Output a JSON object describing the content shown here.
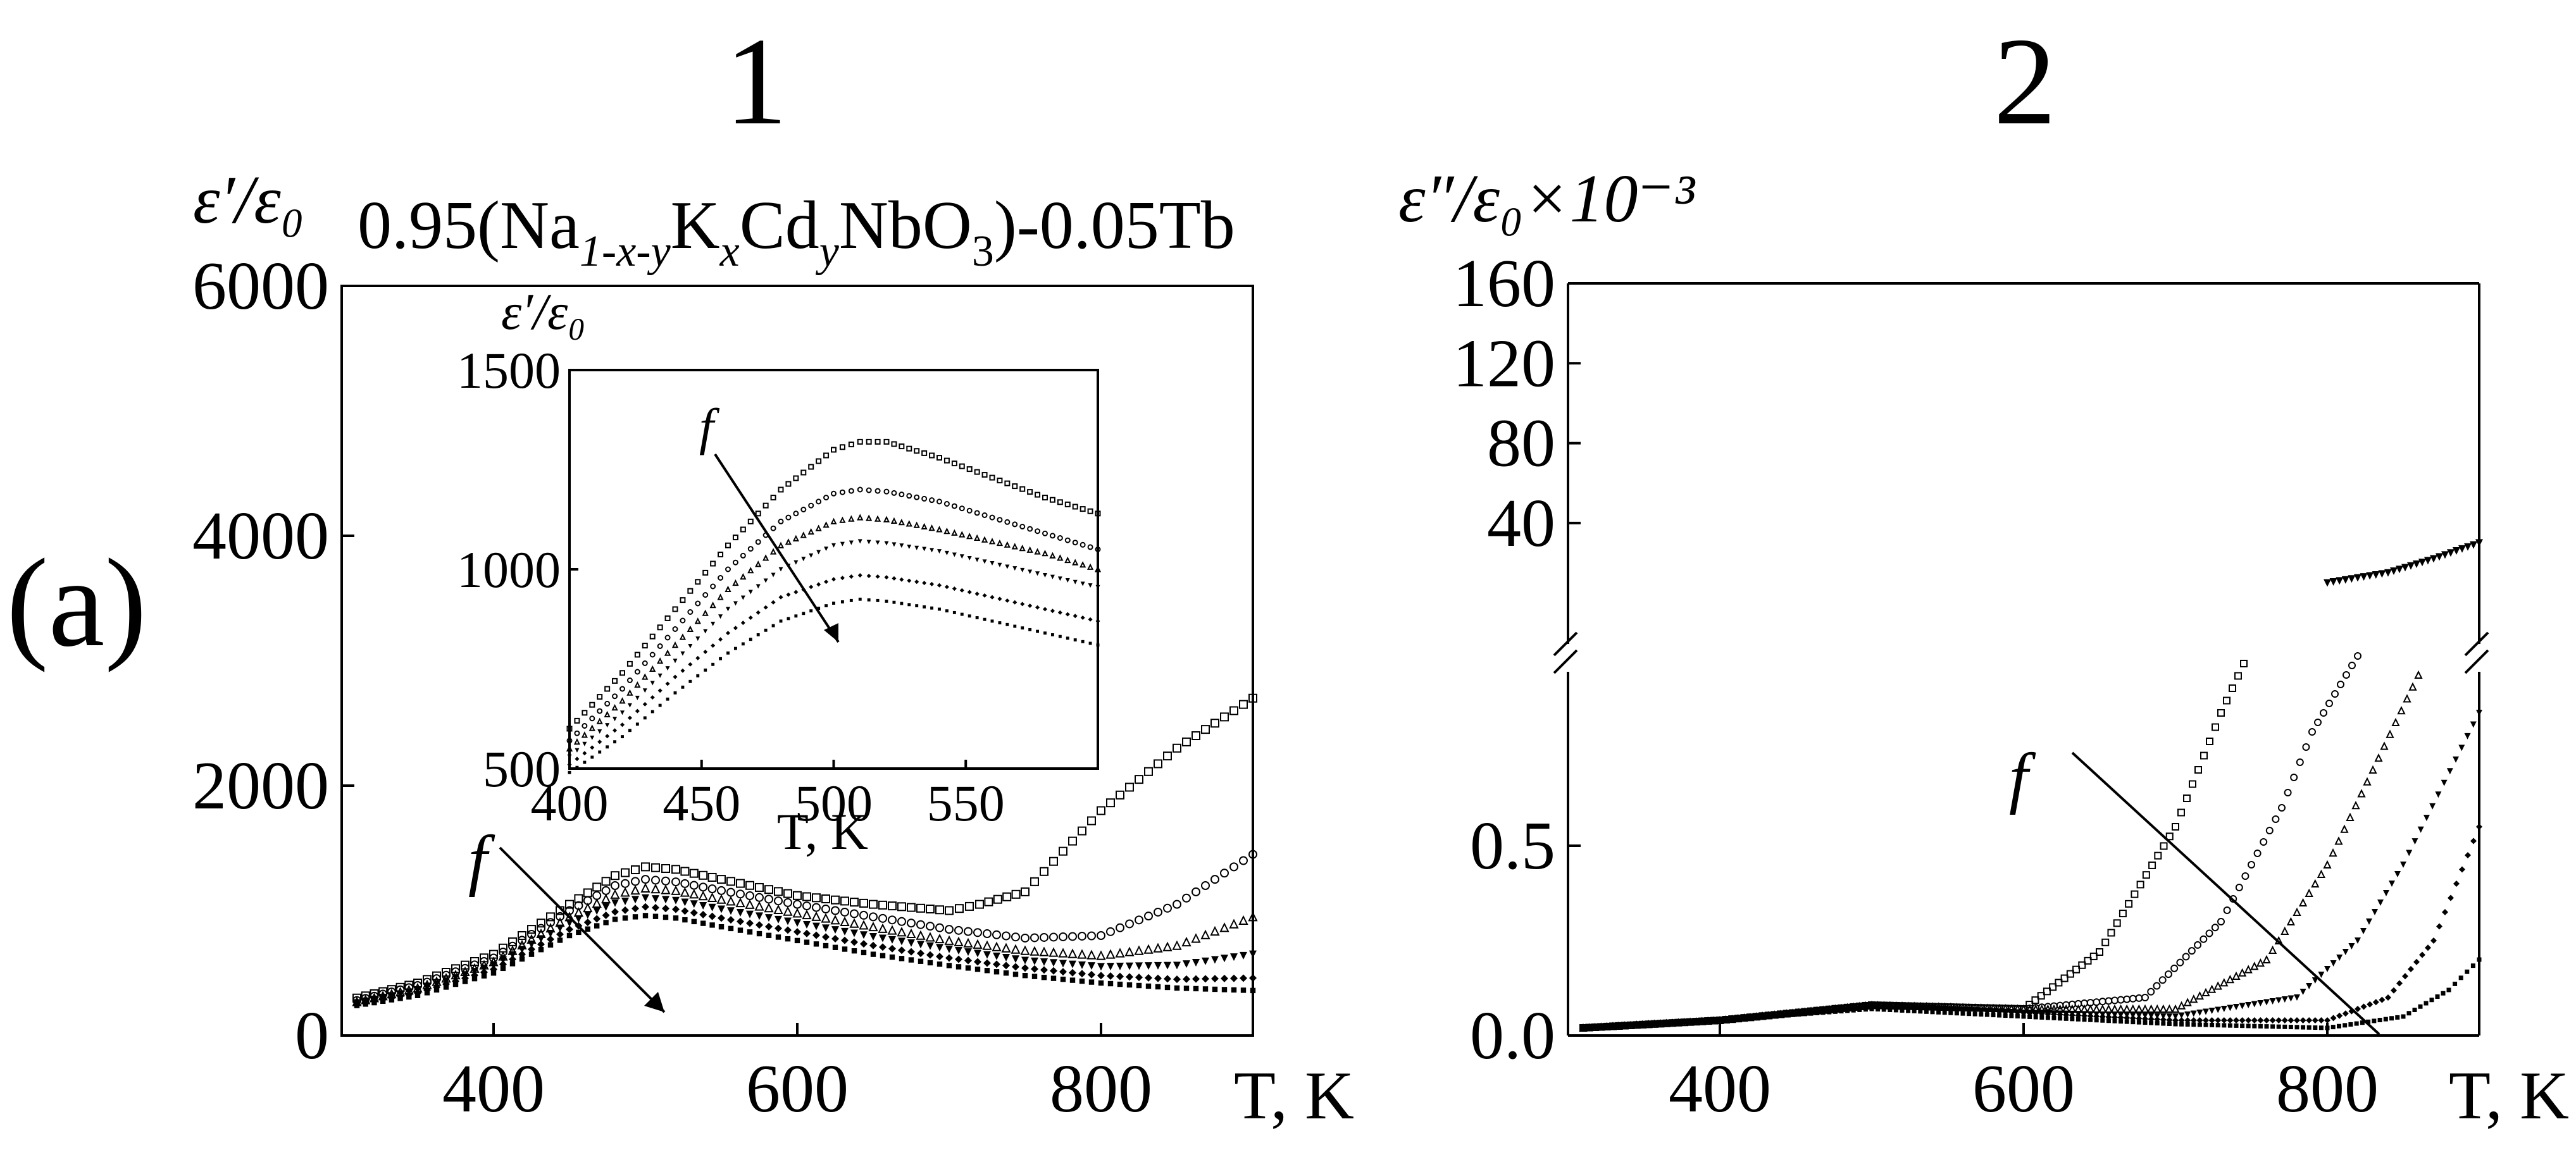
{
  "figure": {
    "panel_labels": [
      "1",
      "2"
    ],
    "row_label": "(a)",
    "compound": {
      "prefix": "0.95(Na",
      "s1": "1-x-y",
      "k": "K",
      "s2": "x",
      "cd": "Cd",
      "s3": "y",
      "nb": "NbO",
      "s4": "3",
      "suffix": ")-0.05Tb"
    },
    "arrow_label": "f"
  },
  "chart_data": [
    {
      "name": "panel-1-main",
      "type": "scatter",
      "ylabel": "ε′/ε₀",
      "xlabel": "T, K",
      "xlim": [
        300,
        900
      ],
      "ylim": [
        0,
        6000
      ],
      "xticks": [
        400,
        600,
        800
      ],
      "yticks": [
        0,
        2000,
        4000,
        6000
      ],
      "annotation": "f",
      "series": [
        {
          "x": [
            310,
            350,
            400,
            450,
            480,
            500,
            520,
            550,
            600,
            650,
            700,
            720,
            750,
            800,
            850,
            900
          ],
          "y": [
            300,
            420,
            650,
            1050,
            1280,
            1350,
            1330,
            1250,
            1120,
            1050,
            1000,
            1050,
            1150,
            1800,
            2300,
            2700
          ]
        },
        {
          "x": [
            310,
            350,
            400,
            450,
            480,
            500,
            520,
            550,
            600,
            650,
            700,
            750,
            800,
            850,
            900
          ],
          "y": [
            280,
            400,
            620,
            1000,
            1200,
            1250,
            1230,
            1160,
            1050,
            950,
            850,
            780,
            800,
            1050,
            1450
          ]
        },
        {
          "x": [
            310,
            350,
            400,
            450,
            480,
            500,
            520,
            550,
            600,
            650,
            700,
            750,
            800,
            850,
            900
          ],
          "y": [
            270,
            380,
            590,
            950,
            1130,
            1180,
            1160,
            1090,
            980,
            870,
            760,
            680,
            640,
            720,
            950
          ]
        },
        {
          "x": [
            310,
            350,
            400,
            450,
            480,
            500,
            520,
            550,
            600,
            650,
            700,
            750,
            800,
            850,
            900
          ],
          "y": [
            260,
            360,
            560,
            900,
            1060,
            1100,
            1080,
            1010,
            900,
            790,
            690,
            600,
            550,
            560,
            650
          ]
        },
        {
          "x": [
            310,
            350,
            400,
            450,
            480,
            500,
            520,
            550,
            600,
            650,
            700,
            750,
            800,
            850,
            900
          ],
          "y": [
            250,
            340,
            530,
            850,
            990,
            1030,
            1010,
            940,
            830,
            720,
            620,
            540,
            480,
            450,
            460
          ]
        },
        {
          "x": [
            310,
            350,
            400,
            450,
            480,
            500,
            520,
            550,
            600,
            650,
            700,
            750,
            800,
            850,
            900
          ],
          "y": [
            240,
            320,
            500,
            800,
            930,
            960,
            940,
            870,
            760,
            650,
            560,
            480,
            420,
            380,
            360
          ]
        }
      ]
    },
    {
      "name": "panel-1-inset",
      "type": "scatter",
      "ylabel": "ε′/ε₀",
      "xlabel": "T, K",
      "xlim": [
        400,
        600
      ],
      "ylim": [
        500,
        1500
      ],
      "xticks": [
        400,
        450,
        500,
        550
      ],
      "yticks": [
        500,
        1000,
        1500
      ],
      "annotation": "f",
      "series": [
        {
          "x": [
            400,
            420,
            440,
            460,
            480,
            500,
            510,
            520,
            540,
            560,
            580,
            600
          ],
          "y": [
            600,
            740,
            900,
            1060,
            1200,
            1300,
            1320,
            1320,
            1280,
            1230,
            1180,
            1140
          ]
        },
        {
          "x": [
            400,
            420,
            440,
            460,
            480,
            500,
            510,
            520,
            540,
            560,
            580,
            600
          ],
          "y": [
            570,
            700,
            850,
            1000,
            1120,
            1190,
            1200,
            1195,
            1170,
            1130,
            1090,
            1050
          ]
        },
        {
          "x": [
            400,
            420,
            440,
            460,
            480,
            500,
            510,
            520,
            540,
            560,
            580,
            600
          ],
          "y": [
            550,
            670,
            810,
            950,
            1060,
            1120,
            1130,
            1125,
            1100,
            1070,
            1040,
            1000
          ]
        },
        {
          "x": [
            400,
            420,
            440,
            460,
            480,
            500,
            510,
            520,
            540,
            560,
            580,
            600
          ],
          "y": [
            530,
            640,
            770,
            900,
            1000,
            1060,
            1070,
            1065,
            1045,
            1015,
            985,
            955
          ]
        },
        {
          "x": [
            400,
            420,
            440,
            460,
            480,
            500,
            510,
            520,
            540,
            560,
            580,
            600
          ],
          "y": [
            510,
            610,
            730,
            840,
            930,
            975,
            985,
            980,
            960,
            930,
            900,
            870
          ]
        },
        {
          "x": [
            400,
            420,
            440,
            460,
            480,
            500,
            510,
            520,
            540,
            560,
            580,
            600
          ],
          "y": [
            490,
            580,
            690,
            790,
            870,
            915,
            925,
            920,
            900,
            870,
            840,
            810
          ]
        }
      ]
    },
    {
      "name": "panel-2",
      "type": "scatter",
      "ylabel": "ε″/ε₀×10⁻³",
      "xlabel": "T, K",
      "xlim": [
        300,
        900
      ],
      "ylim_lower": [
        0,
        1.0
      ],
      "ylim_upper": [
        0,
        160
      ],
      "xticks": [
        400,
        600,
        800
      ],
      "yticks_lower": [
        0.0,
        0.5
      ],
      "yticks_upper": [
        40,
        80,
        120,
        160
      ],
      "axis_break": true,
      "annotation": "f",
      "series": [
        {
          "x": [
            310,
            400,
            500,
            600,
            650,
            700,
            730,
            745
          ],
          "y": [
            0.02,
            0.04,
            0.08,
            0.07,
            0.22,
            0.55,
            0.85,
            0.98
          ]
        },
        {
          "x": [
            310,
            400,
            500,
            600,
            680,
            730,
            770,
            790,
            820
          ],
          "y": [
            0.02,
            0.04,
            0.08,
            0.07,
            0.1,
            0.3,
            0.6,
            0.8,
            1.0
          ]
        },
        {
          "x": [
            310,
            400,
            500,
            600,
            700,
            760,
            800,
            830,
            860
          ],
          "y": [
            0.02,
            0.04,
            0.08,
            0.07,
            0.07,
            0.2,
            0.45,
            0.7,
            0.95
          ]
        },
        {
          "x": [
            310,
            400,
            500,
            600,
            700,
            780,
            820,
            850,
            900
          ],
          "y": [
            0.02,
            0.04,
            0.08,
            0.06,
            0.05,
            0.1,
            0.25,
            0.45,
            0.85
          ]
        },
        {
          "x": [
            310,
            400,
            500,
            600,
            700,
            800,
            840,
            870,
            900
          ],
          "y": [
            0.02,
            0.04,
            0.08,
            0.06,
            0.04,
            0.04,
            0.1,
            0.25,
            0.55
          ]
        },
        {
          "x": [
            310,
            400,
            500,
            600,
            700,
            800,
            850,
            880,
            900
          ],
          "y": [
            0.02,
            0.04,
            0.07,
            0.05,
            0.03,
            0.02,
            0.05,
            0.12,
            0.2
          ]
        }
      ],
      "upper_series": [
        {
          "x": [
            800,
            840,
            870,
            900
          ],
          "y": [
            10,
            15,
            22,
            30
          ]
        }
      ]
    }
  ]
}
